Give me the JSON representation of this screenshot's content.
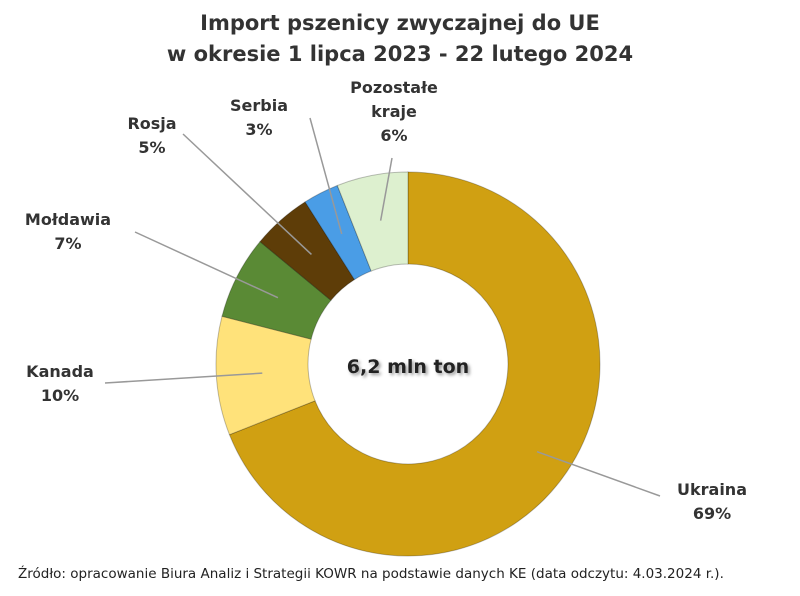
{
  "chart_data": {
    "type": "pie",
    "variant": "donut",
    "title": [
      "Import pszenicy zwyczajnej do UE",
      "w okresie 1 lipca 2023 - 22 lutego 2024"
    ],
    "center_label": "6,2 mln ton",
    "start": "top",
    "direction": "clockwise",
    "slices": [
      {
        "label": "Ukraina",
        "value": 69,
        "value_label": "69%",
        "color": "#D0A012"
      },
      {
        "label": "Kanada",
        "value": 10,
        "value_label": "10%",
        "color": "#FFE27A"
      },
      {
        "label": "Mołdawia",
        "value": 7,
        "value_label": "7%",
        "color": "#5A8A35"
      },
      {
        "label": "Rosja",
        "value": 5,
        "value_label": "5%",
        "color": "#5E3D08"
      },
      {
        "label": "Serbia",
        "value": 3,
        "value_label": "3%",
        "color": "#4A9DE6"
      },
      {
        "label": "Pozostałe kraje",
        "value": 6,
        "value_label": "6%",
        "color": "#DDF0CF"
      }
    ],
    "source": "Źródło: opracowanie Biura Analiz i Strategii KOWR na podstawie danych KE (data odczytu: 4.03.2024 r.)."
  }
}
